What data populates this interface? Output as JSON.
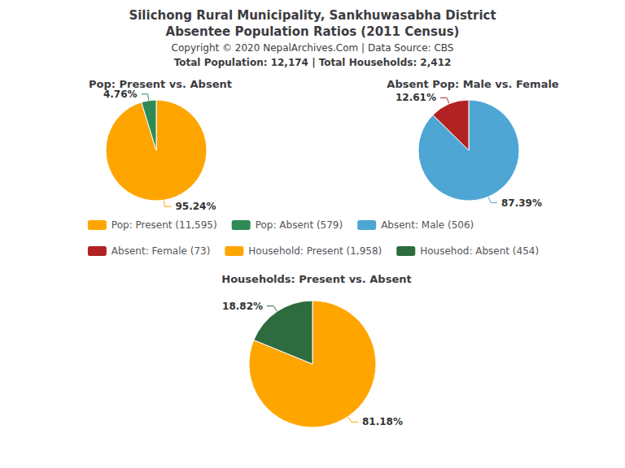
{
  "title": "Silichong Rural Municipality, Sankhuwasabha District",
  "subtitle": "Absentee Population Ratios (2011 Census)",
  "annotations": [
    "Copyright © 2020 NepalArchives.Com | Data Source: CBS",
    "Total Population: 12,174 | Total Households: 2,412"
  ],
  "chart_data": [
    {
      "type": "pie",
      "title": "Pop: Present vs. Absent",
      "categories": [
        "Pop: Present (11,595)",
        "Pop: Absent (579)"
      ],
      "values": [
        95.24,
        4.76
      ],
      "value_labels": [
        "95.24%",
        "4.76%"
      ],
      "colors": [
        "#FFA500",
        "#2E8B57"
      ],
      "data_labels": true,
      "legend": "center"
    },
    {
      "type": "pie",
      "title": "Absent Pop: Male vs. Female",
      "categories": [
        "Absent: Male (506)",
        "Absent: Female (73)"
      ],
      "values": [
        87.39,
        12.61
      ],
      "value_labels": [
        "87.39%",
        "12.61%"
      ],
      "colors": [
        "#4DA6D4",
        "#B22222"
      ],
      "data_labels": true,
      "legend": "center"
    },
    {
      "type": "pie",
      "title": "Households: Present vs. Absent",
      "categories": [
        "Household: Present (1,958)",
        "Househod: Absent (454)"
      ],
      "values": [
        81.18,
        18.82
      ],
      "value_labels": [
        "81.18%",
        "18.82%"
      ],
      "colors": [
        "#FFA500",
        "#2E6B3E"
      ],
      "data_labels": true,
      "legend": "center"
    }
  ]
}
